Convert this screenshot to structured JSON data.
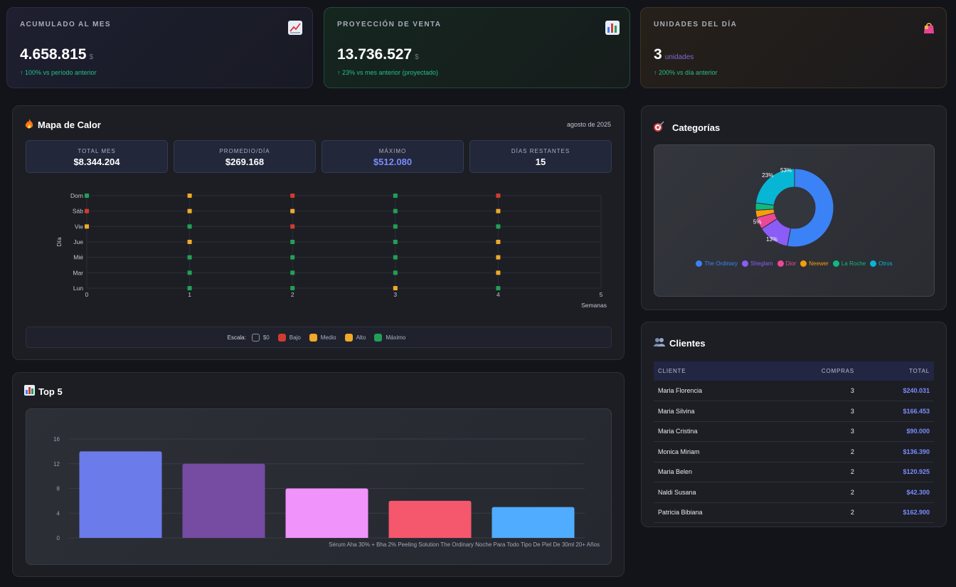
{
  "kpis": [
    {
      "label": "ACUMULADO AL MES",
      "value": "4.658.815",
      "unit": "$",
      "change": "↑ 100% vs período anterior",
      "icon": "chart-up-icon"
    },
    {
      "label": "PROYECCIÓN DE VENTA",
      "value": "13.736.527",
      "unit": "$",
      "change": "↑ 23% vs mes anterior (proyectado)",
      "icon": "bar-chart-icon"
    },
    {
      "label": "UNIDADES DEL DÍA",
      "value": "3",
      "unit": "unidades",
      "change": "↑ 200% vs día anterior",
      "icon": "shopping-bag-icon"
    }
  ],
  "heatmap": {
    "title": "Mapa de Calor",
    "date": "agosto de 2025",
    "stats": [
      {
        "label": "TOTAL MES",
        "value": "$8.344.204"
      },
      {
        "label": "PROMEDIO/DÍA",
        "value": "$269.168"
      },
      {
        "label": "MÁXIMO",
        "value": "$512.080"
      },
      {
        "label": "DÍAS RESTANTES",
        "value": "15"
      }
    ],
    "scale_label": "Escala:",
    "scale_items": [
      {
        "label": "$0",
        "color": "#1f222c"
      },
      {
        "label": "Bajo",
        "color": "#d23b2f"
      },
      {
        "label": "Medio",
        "color": "#f0a928"
      },
      {
        "label": "Alto",
        "color": "#f0a928"
      },
      {
        "label": "Máximo",
        "color": "#21a055"
      }
    ]
  },
  "top5": {
    "title": "Top 5",
    "visible_label": "Sérum Aha 30% + Bha 2% Peeling Solution The Ordinary Noche Para Todo Tipo De Piel De 30ml 20+ Años"
  },
  "categorias": {
    "title": "Categorías"
  },
  "clientes": {
    "title": "Clientes",
    "headers": [
      "CLIENTE",
      "COMPRAS",
      "TOTAL"
    ],
    "rows": [
      {
        "name": "Maria Florencia",
        "compras": "3",
        "total": "$240.031"
      },
      {
        "name": "Maria Silvina",
        "compras": "3",
        "total": "$166.453"
      },
      {
        "name": "Maria Cristina",
        "compras": "3",
        "total": "$90.000"
      },
      {
        "name": "Monica Miriam",
        "compras": "2",
        "total": "$136.390"
      },
      {
        "name": "Maria Belen",
        "compras": "2",
        "total": "$120.925"
      },
      {
        "name": "Naldi Susana",
        "compras": "2",
        "total": "$42.300"
      },
      {
        "name": "Patricia Bibiana",
        "compras": "2",
        "total": "$162.900"
      }
    ]
  },
  "chart_data": [
    {
      "type": "scatter",
      "title": "",
      "xlabel": "Semanas",
      "ylabel": "Día",
      "x_ticks": [
        0,
        1,
        2,
        3,
        4,
        5
      ],
      "y_categories": [
        "Lun",
        "Mar",
        "Mié",
        "Jue",
        "Vie",
        "Sáb",
        "Dom"
      ],
      "xlim": [
        0,
        5
      ],
      "points": [
        {
          "x": 0,
          "y": "Dom",
          "level": "Máximo",
          "color": "#21a055"
        },
        {
          "x": 0,
          "y": "Sáb",
          "level": "Bajo",
          "color": "#d23b2f"
        },
        {
          "x": 0,
          "y": "Vie",
          "level": "Medio",
          "color": "#f0a928"
        },
        {
          "x": 1,
          "y": "Dom",
          "level": "Medio",
          "color": "#f0a928"
        },
        {
          "x": 1,
          "y": "Sáb",
          "level": "Medio",
          "color": "#f0a928"
        },
        {
          "x": 1,
          "y": "Vie",
          "level": "Máximo",
          "color": "#21a055"
        },
        {
          "x": 1,
          "y": "Jue",
          "level": "Medio",
          "color": "#f0a928"
        },
        {
          "x": 1,
          "y": "Mié",
          "level": "Máximo",
          "color": "#21a055"
        },
        {
          "x": 1,
          "y": "Mar",
          "level": "Máximo",
          "color": "#21a055"
        },
        {
          "x": 1,
          "y": "Lun",
          "level": "Máximo",
          "color": "#21a055"
        },
        {
          "x": 2,
          "y": "Dom",
          "level": "Bajo",
          "color": "#d23b2f"
        },
        {
          "x": 2,
          "y": "Sáb",
          "level": "Medio",
          "color": "#f0a928"
        },
        {
          "x": 2,
          "y": "Vie",
          "level": "Bajo",
          "color": "#d23b2f"
        },
        {
          "x": 2,
          "y": "Jue",
          "level": "Máximo",
          "color": "#21a055"
        },
        {
          "x": 2,
          "y": "Mié",
          "level": "Máximo",
          "color": "#21a055"
        },
        {
          "x": 2,
          "y": "Mar",
          "level": "Máximo",
          "color": "#21a055"
        },
        {
          "x": 2,
          "y": "Lun",
          "level": "Máximo",
          "color": "#21a055"
        },
        {
          "x": 3,
          "y": "Dom",
          "level": "Máximo",
          "color": "#21a055"
        },
        {
          "x": 3,
          "y": "Sáb",
          "level": "Máximo",
          "color": "#21a055"
        },
        {
          "x": 3,
          "y": "Vie",
          "level": "Máximo",
          "color": "#21a055"
        },
        {
          "x": 3,
          "y": "Jue",
          "level": "Máximo",
          "color": "#21a055"
        },
        {
          "x": 3,
          "y": "Mié",
          "level": "Máximo",
          "color": "#21a055"
        },
        {
          "x": 3,
          "y": "Mar",
          "level": "Máximo",
          "color": "#21a055"
        },
        {
          "x": 3,
          "y": "Lun",
          "level": "Medio",
          "color": "#f0a928"
        },
        {
          "x": 4,
          "y": "Dom",
          "level": "Bajo",
          "color": "#d23b2f"
        },
        {
          "x": 4,
          "y": "Sáb",
          "level": "Medio",
          "color": "#f0a928"
        },
        {
          "x": 4,
          "y": "Vie",
          "level": "Máximo",
          "color": "#21a055"
        },
        {
          "x": 4,
          "y": "Jue",
          "level": "Medio",
          "color": "#f0a928"
        },
        {
          "x": 4,
          "y": "Mié",
          "level": "Medio",
          "color": "#f0a928"
        },
        {
          "x": 4,
          "y": "Mar",
          "level": "Medio",
          "color": "#f0a928"
        },
        {
          "x": 4,
          "y": "Lun",
          "level": "Máximo",
          "color": "#21a055"
        }
      ]
    },
    {
      "type": "bar",
      "title": "",
      "categories": [
        "",
        "",
        "",
        "",
        "Sérum Aha 30% + Bha 2% Peeling Solution The Ordinary Noche Para Todo Tipo De Piel De 30ml 20+ Años"
      ],
      "values": [
        14,
        12,
        8,
        6,
        5
      ],
      "colors": [
        "#6b7bea",
        "#764ba2",
        "#f093fb",
        "#f5576c",
        "#4facfe"
      ],
      "y_ticks": [
        0,
        4,
        8,
        12,
        16
      ],
      "ylim": [
        0,
        16
      ]
    },
    {
      "type": "pie",
      "title": "",
      "labels": [
        "The Ordinary",
        "Sheglam",
        "Dior",
        "Neewer",
        "La Roche",
        "Otros"
      ],
      "values": [
        53,
        13,
        5,
        3,
        3,
        23
      ],
      "colors": [
        "#3b82f6",
        "#8b5cf6",
        "#ec4899",
        "#f59e0b",
        "#10b981",
        "#06b6d4"
      ],
      "data_labels": [
        "53%",
        "13%",
        "5%",
        "",
        "",
        "23%"
      ]
    }
  ]
}
